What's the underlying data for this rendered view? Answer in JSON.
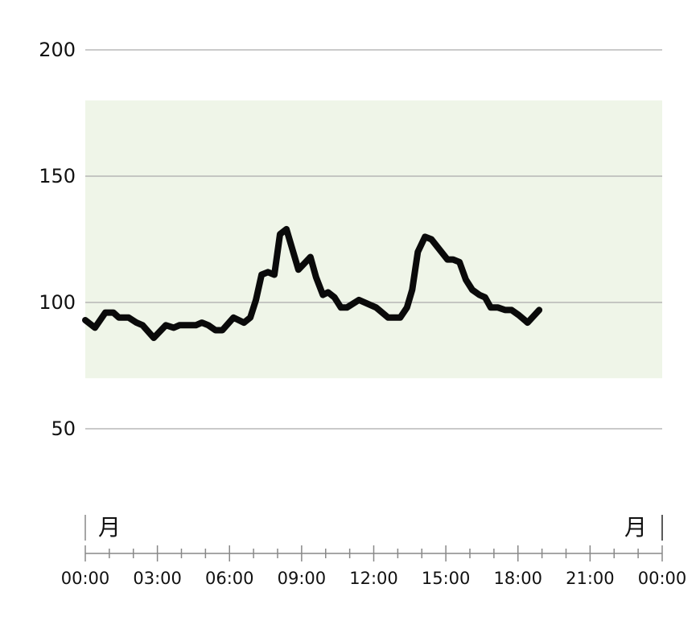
{
  "chart_data": {
    "type": "line",
    "title": "",
    "xlabel": "",
    "ylabel": "",
    "ylim": [
      0,
      200
    ],
    "y_ticks": [
      "50",
      "100",
      "150",
      "200"
    ],
    "xlim_hours": [
      0,
      24
    ],
    "x_ticks": [
      "00:00",
      "03:00",
      "06:00",
      "09:00",
      "12:00",
      "15:00",
      "18:00",
      "21:00",
      "00:00"
    ],
    "day_labels": {
      "start": "月",
      "end": "月"
    },
    "grid": true,
    "target_range": {
      "low": 70,
      "high": 180,
      "color": "#eff5e8"
    },
    "line_color": "#0a0a0a",
    "series": [
      {
        "x": [
          "00:00",
          "00:24",
          "00:50",
          "01:10",
          "01:24",
          "01:48",
          "02:08",
          "02:23",
          "02:51",
          "03:21",
          "03:41",
          "03:55",
          "04:36",
          "04:51",
          "05:07",
          "05:25",
          "05:42",
          "06:10",
          "06:36",
          "06:52",
          "07:06",
          "07:20",
          "07:36",
          "07:52",
          "08:06",
          "08:22",
          "08:52",
          "09:22",
          "09:36",
          "09:53",
          "10:06",
          "10:22",
          "10:38",
          "10:53",
          "11:23",
          "12:06",
          "12:36",
          "13:06",
          "13:23",
          "13:36",
          "13:50",
          "14:08",
          "14:24",
          "15:04",
          "15:18",
          "15:34",
          "15:50",
          "16:06",
          "16:24",
          "16:38",
          "16:52",
          "17:10",
          "17:28",
          "17:44",
          "18:02",
          "18:17",
          "18:24",
          "18:53"
        ],
        "y": [
          93,
          90,
          96,
          96,
          94,
          94,
          92,
          91,
          86,
          91,
          90,
          91,
          91,
          92,
          91,
          89,
          89,
          94,
          92,
          94,
          101,
          111,
          112,
          111,
          127,
          129,
          113,
          118,
          110,
          103,
          104,
          102,
          98,
          98,
          101,
          98,
          94,
          94,
          98,
          105,
          120,
          126,
          125,
          117,
          117,
          116,
          109,
          105,
          103,
          102,
          98,
          98,
          97,
          97,
          95,
          93,
          92,
          97
        ]
      }
    ]
  }
}
